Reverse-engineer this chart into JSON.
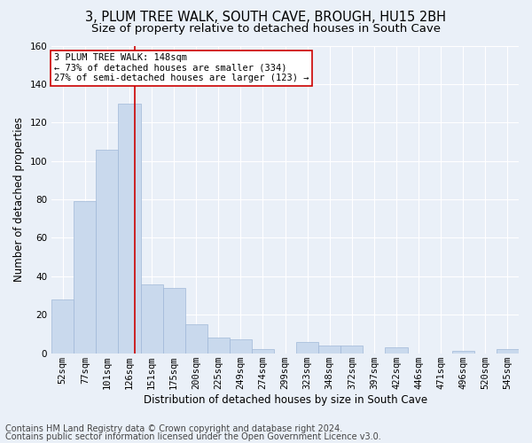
{
  "title1": "3, PLUM TREE WALK, SOUTH CAVE, BROUGH, HU15 2BH",
  "title2": "Size of property relative to detached houses in South Cave",
  "xlabel": "Distribution of detached houses by size in South Cave",
  "ylabel": "Number of detached properties",
  "bin_labels": [
    "52sqm",
    "77sqm",
    "101sqm",
    "126sqm",
    "151sqm",
    "175sqm",
    "200sqm",
    "225sqm",
    "249sqm",
    "274sqm",
    "299sqm",
    "323sqm",
    "348sqm",
    "372sqm",
    "397sqm",
    "422sqm",
    "446sqm",
    "471sqm",
    "496sqm",
    "520sqm",
    "545sqm"
  ],
  "bar_values": [
    28,
    79,
    106,
    130,
    36,
    34,
    15,
    8,
    7,
    2,
    0,
    6,
    4,
    4,
    0,
    3,
    0,
    0,
    1,
    0,
    2
  ],
  "bar_color": "#c9d9ed",
  "bar_edge_color": "#a0b8d8",
  "vline_x": 3.73,
  "vline_color": "#cc0000",
  "ylim": [
    0,
    160
  ],
  "yticks": [
    0,
    20,
    40,
    60,
    80,
    100,
    120,
    140,
    160
  ],
  "annotation_line1": "3 PLUM TREE WALK: 148sqm",
  "annotation_line2": "← 73% of detached houses are smaller (334)",
  "annotation_line3": "27% of semi-detached houses are larger (123) →",
  "annotation_box_color": "#ffffff",
  "annotation_box_edge": "#cc0000",
  "footer1": "Contains HM Land Registry data © Crown copyright and database right 2024.",
  "footer2": "Contains public sector information licensed under the Open Government Licence v3.0.",
  "bg_color": "#eaf0f8",
  "plot_bg_color": "#eaf0f8",
  "grid_color": "#ffffff",
  "title1_fontsize": 10.5,
  "title2_fontsize": 9.5,
  "axis_label_fontsize": 8.5,
  "tick_fontsize": 7.5,
  "annot_fontsize": 7.5,
  "footer_fontsize": 7.0
}
